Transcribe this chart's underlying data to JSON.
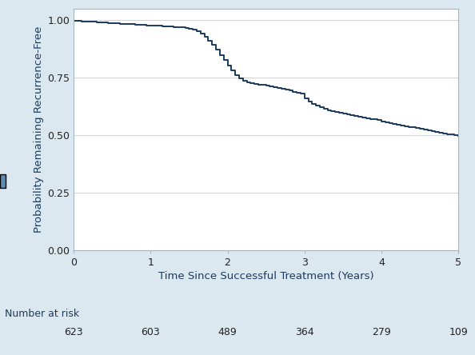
{
  "title": "",
  "xlabel": "Time Since Successful Treatment (Years)",
  "ylabel": "Probability Remaining Recurrence-Free",
  "xlim": [
    0,
    5
  ],
  "ylim": [
    0,
    1.05
  ],
  "yticks": [
    0.0,
    0.25,
    0.5,
    0.75,
    1.0
  ],
  "xticks": [
    0,
    1,
    2,
    3,
    4,
    5
  ],
  "line_color": "#1b3a5c",
  "line_width": 1.4,
  "bg_color": "#dce8f0",
  "plot_bg_color": "#ffffff",
  "number_at_risk_label": "Number at risk",
  "number_at_risk_times": [
    0,
    1,
    2,
    3,
    4,
    5
  ],
  "number_at_risk_values": [
    623,
    603,
    489,
    364,
    279,
    109
  ],
  "km_times": [
    0.0,
    0.05,
    0.1,
    0.15,
    0.2,
    0.25,
    0.3,
    0.35,
    0.4,
    0.45,
    0.5,
    0.55,
    0.6,
    0.65,
    0.7,
    0.75,
    0.8,
    0.85,
    0.9,
    0.95,
    1.0,
    1.05,
    1.1,
    1.15,
    1.2,
    1.25,
    1.3,
    1.35,
    1.4,
    1.45,
    1.5,
    1.55,
    1.6,
    1.65,
    1.7,
    1.75,
    1.8,
    1.85,
    1.9,
    1.95,
    2.0,
    2.05,
    2.1,
    2.15,
    2.2,
    2.25,
    2.3,
    2.35,
    2.4,
    2.45,
    2.5,
    2.55,
    2.6,
    2.65,
    2.7,
    2.75,
    2.8,
    2.85,
    2.9,
    2.95,
    3.0,
    3.05,
    3.1,
    3.15,
    3.2,
    3.25,
    3.3,
    3.35,
    3.4,
    3.45,
    3.5,
    3.55,
    3.6,
    3.65,
    3.7,
    3.75,
    3.8,
    3.85,
    3.9,
    3.95,
    4.0,
    4.05,
    4.1,
    4.15,
    4.2,
    4.25,
    4.3,
    4.35,
    4.4,
    4.45,
    4.5,
    4.55,
    4.6,
    4.65,
    4.7,
    4.75,
    4.8,
    4.85,
    4.9,
    4.95,
    5.0
  ],
  "km_survival": [
    0.998,
    0.997,
    0.996,
    0.995,
    0.994,
    0.993,
    0.992,
    0.991,
    0.99,
    0.989,
    0.988,
    0.987,
    0.986,
    0.985,
    0.984,
    0.983,
    0.982,
    0.981,
    0.98,
    0.979,
    0.978,
    0.977,
    0.976,
    0.975,
    0.974,
    0.973,
    0.972,
    0.971,
    0.97,
    0.968,
    0.965,
    0.96,
    0.952,
    0.942,
    0.928,
    0.912,
    0.893,
    0.872,
    0.85,
    0.828,
    0.805,
    0.783,
    0.763,
    0.748,
    0.738,
    0.73,
    0.726,
    0.723,
    0.721,
    0.719,
    0.717,
    0.714,
    0.711,
    0.707,
    0.703,
    0.699,
    0.695,
    0.69,
    0.685,
    0.68,
    0.66,
    0.648,
    0.638,
    0.628,
    0.621,
    0.615,
    0.61,
    0.606,
    0.602,
    0.598,
    0.594,
    0.59,
    0.587,
    0.584,
    0.581,
    0.578,
    0.575,
    0.572,
    0.569,
    0.566,
    0.56,
    0.556,
    0.552,
    0.549,
    0.546,
    0.543,
    0.54,
    0.537,
    0.534,
    0.531,
    0.527,
    0.524,
    0.521,
    0.518,
    0.515,
    0.512,
    0.509,
    0.506,
    0.503,
    0.5,
    0.497
  ]
}
